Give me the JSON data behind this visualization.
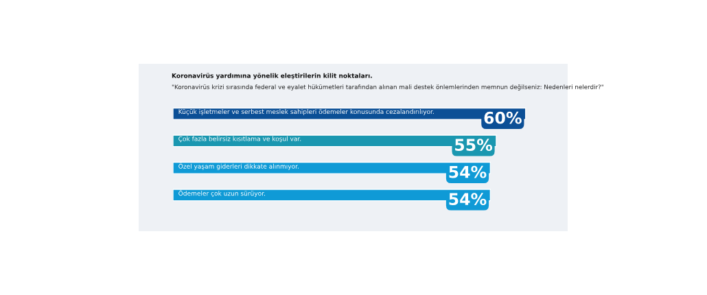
{
  "chart_data": {
    "type": "bar",
    "orientation": "horizontal",
    "title": "Koronavirüs yardımına yönelik eleştirilerin kilit noktaları.",
    "subtitle": "\"Koronavirüs krizi sırasında federal ve eyalet hükümetleri tarafından alınan mali destek önlemlerinden memnun değilseniz: Nedenleri nelerdir?\"",
    "categories": [
      "Küçük işletmeler ve serbest meslek sahipleri ödemeler konusunda cezalandırılıyor.",
      "Çok fazla belirsiz kısıtlama ve koşul var.",
      "Özel yaşam giderleri dikkate alınmıyor.",
      "Ödemeler çok uzun sürüyor."
    ],
    "values": [
      60,
      55,
      54,
      54
    ],
    "value_labels": [
      "60%",
      "55%",
      "54%",
      "54%"
    ],
    "colors": [
      "#0b4f96",
      "#1a97b0",
      "#0f9ad6",
      "#0f9ad6"
    ],
    "tick_labels": false
  }
}
